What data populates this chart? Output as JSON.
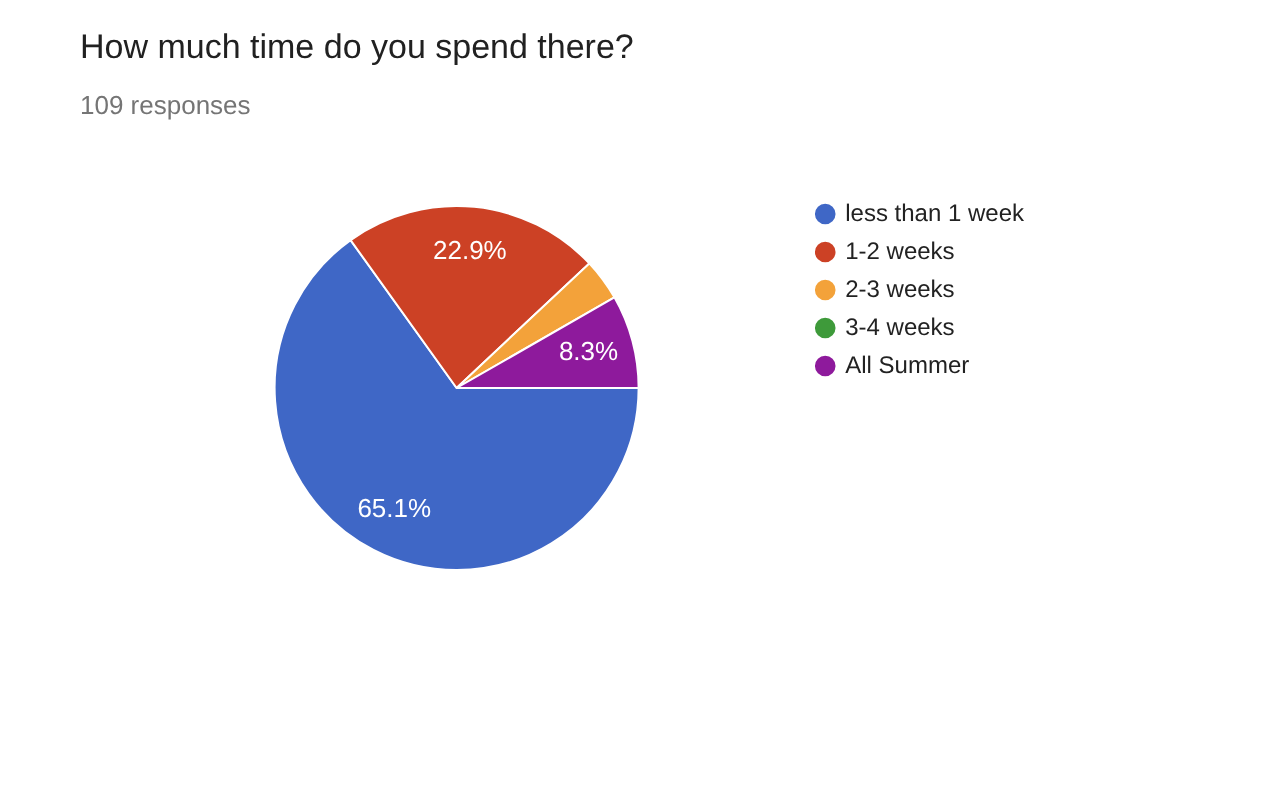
{
  "chart_data": {
    "type": "pie",
    "title": "How much time do you spend there?",
    "subtitle": "109 responses",
    "categories": [
      "less than 1 week",
      "1-2 weeks",
      "2-3 weeks",
      "3-4 weeks",
      "All Summer"
    ],
    "values": [
      65.1,
      22.9,
      3.7,
      0,
      8.3
    ],
    "colors": [
      "#3f67c6",
      "#cc4125",
      "#f3a23a",
      "#3e9a3a",
      "#8e1a9c"
    ],
    "value_labels": [
      "65.1%",
      "22.9%",
      null,
      null,
      "8.3%"
    ],
    "legend": "right"
  }
}
